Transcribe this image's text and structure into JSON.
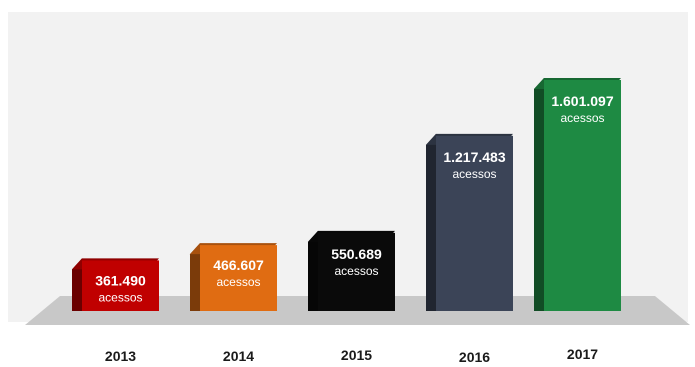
{
  "chart_data": {
    "type": "bar",
    "categories": [
      "2013",
      "2014",
      "2015",
      "2016",
      "2017"
    ],
    "values": [
      361490,
      466607,
      550689,
      1217483,
      1601097
    ],
    "value_labels": [
      "361.490",
      "466.607",
      "550.689",
      "1.217.483",
      "1.601.097"
    ],
    "unit_label": "acessos",
    "bar_colors": [
      "#c00000",
      "#e06c12",
      "#0a0a0a",
      "#3b4457",
      "#1e8a43"
    ],
    "ylim": [
      0,
      1601097
    ],
    "grid": false,
    "legend": "none"
  }
}
